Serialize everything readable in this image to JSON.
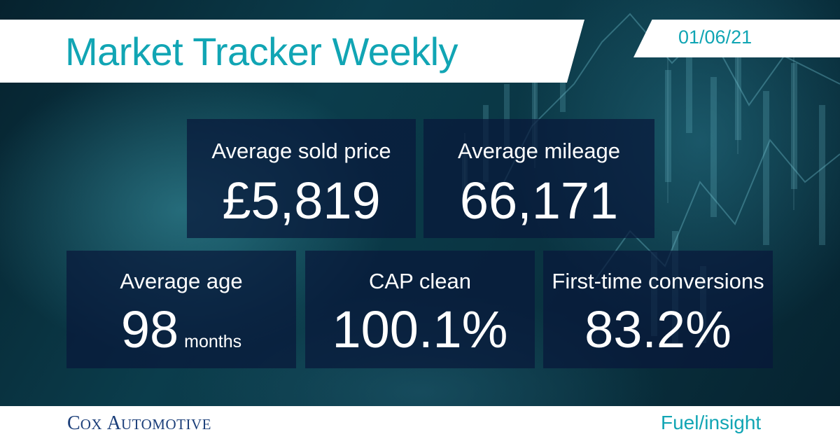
{
  "header": {
    "title": "Market Tracker Weekly",
    "date": "01/06/21"
  },
  "stats": {
    "price": {
      "label": "Average sold price",
      "value": "£5,819"
    },
    "mileage": {
      "label": "Average mileage",
      "value": "66,171"
    },
    "age": {
      "label": "Average age",
      "value": "98",
      "unit": "months"
    },
    "cap": {
      "label": "CAP clean",
      "value": "100.1%"
    },
    "conversions": {
      "label": "First-time conversions",
      "value": "83.2%"
    }
  },
  "footer": {
    "brand_c": "C",
    "brand_ox": "OX",
    "brand_a": "A",
    "brand_utomotive": "UTOMOTIVE",
    "product_a": "Fuel/",
    "product_b": "insight"
  },
  "colors": {
    "accent": "#11a5b4",
    "brand_navy": "#1c3f7a",
    "box_fill": "#08183a"
  }
}
